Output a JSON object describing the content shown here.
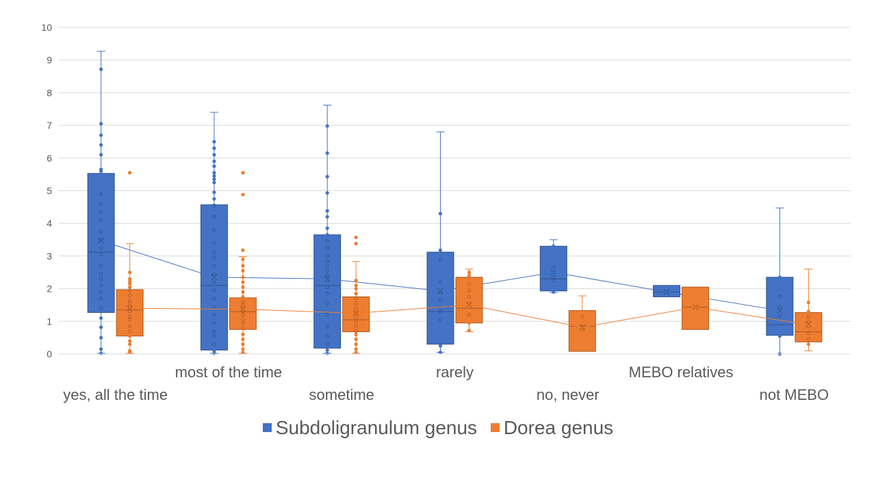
{
  "chart_data": {
    "type": "box",
    "categories": [
      "yes, all the time",
      "most of the time",
      "sometime",
      "rarely",
      "no, never",
      "MEBO relatives",
      "not MEBO"
    ],
    "ylim": [
      0,
      10
    ],
    "yticks": [
      "0",
      "1",
      "2",
      "3",
      "4",
      "5",
      "6",
      "7",
      "8",
      "9",
      "10"
    ],
    "grid": true,
    "legend_position": "bottom",
    "series": [
      {
        "name": "Subdoligranulum genus",
        "color": "#4472C4",
        "boxes": [
          {
            "min": 0.02,
            "q1": 1.27,
            "median": 3.12,
            "q3": 5.53,
            "max": 9.27,
            "mean": 3.47,
            "points": [
              0.02,
              0.15,
              0.5,
              0.82,
              1.1,
              1.4,
              1.7,
              1.9,
              2.1,
              2.3,
              2.45,
              2.7,
              3.05,
              3.25,
              3.5,
              3.75,
              4.1,
              4.35,
              4.6,
              4.9,
              5.6,
              5.65,
              6.1,
              6.4,
              6.7,
              7.05,
              8.72
            ]
          },
          {
            "min": 0.02,
            "q1": 0.12,
            "median": 2.1,
            "q3": 4.57,
            "max": 7.4,
            "mean": 2.35,
            "points": [
              0.02,
              0.1,
              0.3,
              0.55,
              0.7,
              0.95,
              1.2,
              1.45,
              1.7,
              1.95,
              2.2,
              2.45,
              2.7,
              2.95,
              3.1,
              3.4,
              3.8,
              4.2,
              4.55,
              4.75,
              4.95,
              5.25,
              5.35,
              5.45,
              5.55,
              5.75,
              5.9,
              6.1,
              6.3,
              6.5
            ]
          },
          {
            "min": 0.02,
            "q1": 0.18,
            "median": 2.1,
            "q3": 3.65,
            "max": 7.62,
            "mean": 2.3,
            "points": [
              0.02,
              0.12,
              0.3,
              0.55,
              0.85,
              1.2,
              1.55,
              1.85,
              2.05,
              2.25,
              2.4,
              2.55,
              2.7,
              2.85,
              3.0,
              3.25,
              3.45,
              3.65,
              3.85,
              4.2,
              4.38,
              4.93,
              5.43,
              6.15,
              6.98
            ]
          },
          {
            "min": 0.05,
            "q1": 0.3,
            "median": 1.3,
            "q3": 3.12,
            "max": 6.8,
            "mean": 1.93,
            "points": [
              0.05,
              0.25,
              1.05,
              1.3,
              1.65,
              1.9,
              2.2,
              2.9,
              3.18,
              4.3
            ]
          },
          {
            "min": 1.88,
            "q1": 1.93,
            "median": 2.3,
            "q3": 3.3,
            "max": 3.5,
            "mean": 2.5,
            "points": [
              1.9,
              2.25,
              2.35,
              2.65,
              3.3
            ]
          },
          {
            "min": 1.75,
            "q1": 1.75,
            "median": 1.9,
            "q3": 2.1,
            "max": 2.1,
            "mean": 1.9,
            "points": []
          },
          {
            "min": 0.0,
            "q1": 0.57,
            "median": 0.9,
            "q3": 2.35,
            "max": 4.47,
            "mean": 1.33,
            "points": [
              0.0,
              0.55,
              1.15,
              1.45,
              1.75,
              2.35
            ]
          }
        ]
      },
      {
        "name": "Dorea genus",
        "color": "#ED7D31",
        "boxes": [
          {
            "min": 0.02,
            "q1": 0.55,
            "median": 1.35,
            "q3": 1.97,
            "max": 3.38,
            "mean": 1.4,
            "points": [
              0.05,
              0.1,
              0.3,
              0.4,
              0.55,
              0.7,
              0.85,
              1.05,
              1.15,
              1.3,
              1.45,
              1.55,
              1.65,
              1.8,
              1.95,
              2.05,
              2.15,
              2.22,
              2.3,
              2.5,
              5.55
            ]
          },
          {
            "min": 0.02,
            "q1": 0.75,
            "median": 1.3,
            "q3": 1.72,
            "max": 2.98,
            "mean": 1.37,
            "points": [
              0.05,
              0.15,
              0.3,
              0.45,
              0.6,
              0.8,
              0.95,
              1.05,
              1.2,
              1.3,
              1.4,
              1.5,
              1.6,
              1.75,
              1.9,
              2.05,
              2.2,
              2.35,
              2.55,
              2.7,
              2.9,
              3.18,
              4.88,
              5.55
            ]
          },
          {
            "min": 0.02,
            "q1": 0.68,
            "median": 1.05,
            "q3": 1.75,
            "max": 2.83,
            "mean": 1.25,
            "points": [
              0.05,
              0.15,
              0.3,
              0.45,
              0.6,
              0.7,
              0.85,
              1.0,
              1.1,
              1.25,
              1.4,
              1.55,
              1.7,
              1.85,
              2.0,
              2.1,
              2.25,
              3.38,
              3.57
            ]
          },
          {
            "min": 0.68,
            "q1": 0.95,
            "median": 1.4,
            "q3": 2.35,
            "max": 2.6,
            "mean": 1.5,
            "points": [
              0.72,
              0.95,
              1.2,
              1.55,
              1.75,
              1.95,
              2.15,
              2.4,
              2.5
            ]
          },
          {
            "min": 0.08,
            "q1": 0.08,
            "median": 0.85,
            "q3": 1.33,
            "max": 1.78,
            "mean": 0.82,
            "points": [
              0.75,
              0.85,
              1.15
            ]
          },
          {
            "min": 0.75,
            "q1": 0.75,
            "median": 1.43,
            "q3": 2.05,
            "max": 2.05,
            "mean": 1.43,
            "points": []
          },
          {
            "min": 0.1,
            "q1": 0.37,
            "median": 0.68,
            "q3": 1.27,
            "max": 2.6,
            "mean": 0.9,
            "points": [
              0.3,
              0.45,
              0.65,
              0.85,
              1.0,
              1.15,
              1.3,
              1.58
            ]
          }
        ]
      }
    ]
  }
}
